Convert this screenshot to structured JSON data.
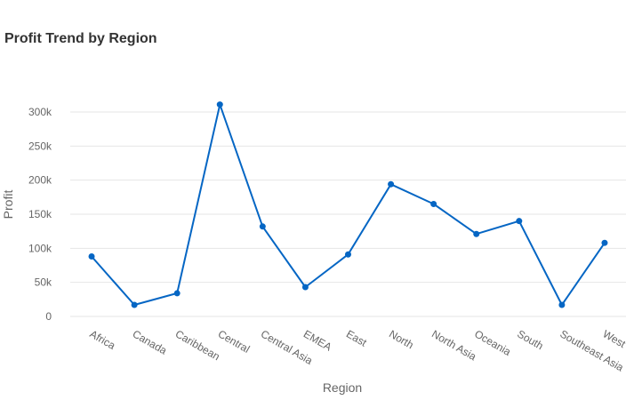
{
  "chart_data": {
    "type": "line",
    "title": "Profit Trend by Region",
    "xlabel": "Region",
    "ylabel": "Profit",
    "categories": [
      "Africa",
      "Canada",
      "Caribbean",
      "Central",
      "Central Asia",
      "EMEA",
      "East",
      "North",
      "North Asia",
      "Oceania",
      "South",
      "Southeast Asia",
      "West"
    ],
    "series": [
      {
        "values": [
          88000,
          17000,
          34000,
          311000,
          132000,
          43000,
          91000,
          194000,
          165000,
          121000,
          140000,
          17000,
          108000
        ]
      }
    ],
    "ylim": [
      0,
      300000
    ],
    "yticks": [
      {
        "value": 0,
        "label": "0"
      },
      {
        "value": 50000,
        "label": "50k"
      },
      {
        "value": 100000,
        "label": "100k"
      },
      {
        "value": 150000,
        "label": "150k"
      },
      {
        "value": 200000,
        "label": "200k"
      },
      {
        "value": 250000,
        "label": "250k"
      },
      {
        "value": 300000,
        "label": "300k"
      }
    ],
    "grid": true,
    "colors": {
      "line": "#0566C4",
      "grid": "#e6e6e6",
      "text": "#666666",
      "title": "#333333"
    }
  }
}
